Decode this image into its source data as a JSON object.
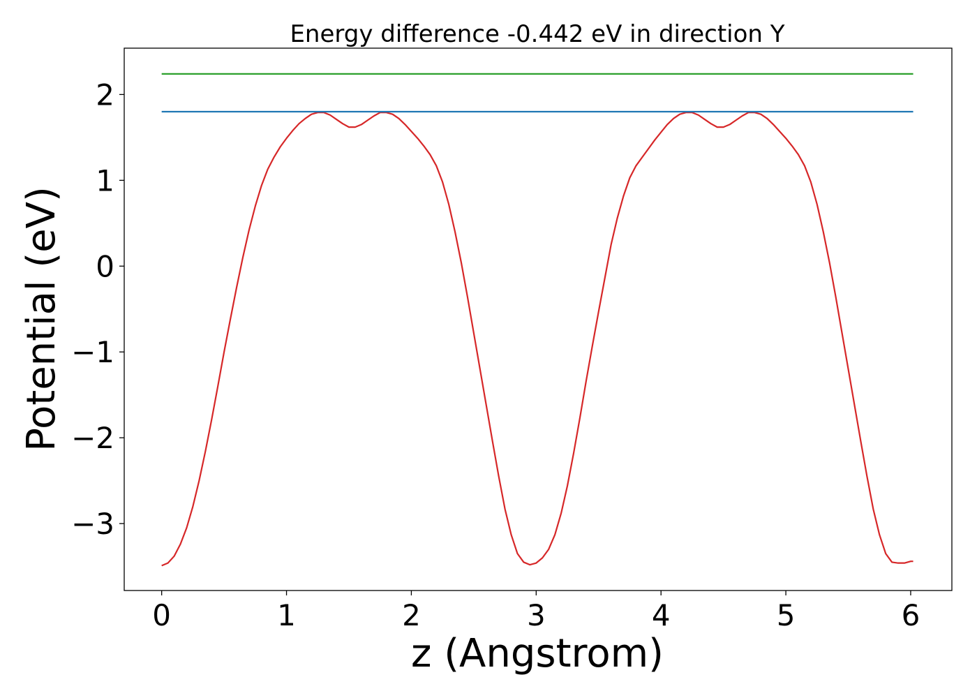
{
  "chart_data": {
    "type": "line",
    "title": "Energy difference -0.442 eV in direction Y",
    "xlabel": "z (Angstrom)",
    "ylabel": "Potential (eV)",
    "xlim": [
      -0.3,
      6.33
    ],
    "ylim": [
      -3.78,
      2.54
    ],
    "xticks": [
      0,
      1,
      2,
      3,
      4,
      5,
      6
    ],
    "xtick_labels": [
      "0",
      "1",
      "2",
      "3",
      "4",
      "5",
      "6"
    ],
    "yticks": [
      -3,
      -2,
      -1,
      0,
      1,
      2
    ],
    "ytick_labels": [
      "−3",
      "−2",
      "−1",
      "0",
      "1",
      "2"
    ],
    "grid": false,
    "series": [
      {
        "color": "#d62728",
        "x": [
          0.0,
          0.05,
          0.1,
          0.15,
          0.2,
          0.25,
          0.3,
          0.35,
          0.4,
          0.45,
          0.5,
          0.55,
          0.6,
          0.65,
          0.7,
          0.75,
          0.8,
          0.85,
          0.9,
          0.95,
          1.0,
          1.05,
          1.1,
          1.15,
          1.2,
          1.25,
          1.3,
          1.35,
          1.4,
          1.45,
          1.5,
          1.55,
          1.6,
          1.65,
          1.7,
          1.75,
          1.8,
          1.85,
          1.9,
          1.95,
          2.0,
          2.05,
          2.1,
          2.15,
          2.2,
          2.25,
          2.3,
          2.35,
          2.4,
          2.45,
          2.5,
          2.55,
          2.6,
          2.65,
          2.7,
          2.75,
          2.8,
          2.85,
          2.9,
          2.95,
          3.0,
          3.05,
          3.1,
          3.15,
          3.2,
          3.25,
          3.3,
          3.35,
          3.4,
          3.45,
          3.5,
          3.55,
          3.6,
          3.65,
          3.7,
          3.75,
          3.8,
          3.85,
          3.9,
          3.95,
          4.0,
          4.05,
          4.1,
          4.15,
          4.2,
          4.25,
          4.3,
          4.35,
          4.4,
          4.45,
          4.5,
          4.55,
          4.6,
          4.65,
          4.7,
          4.75,
          4.8,
          4.85,
          4.9,
          4.95,
          5.0,
          5.05,
          5.1,
          5.15,
          5.2,
          5.25,
          5.3,
          5.35,
          5.4,
          5.45,
          5.5,
          5.55,
          5.6,
          5.65,
          5.7,
          5.75,
          5.8,
          5.85,
          5.9,
          5.95,
          6.0,
          6.02
        ],
        "y": [
          -3.49,
          -3.46,
          -3.38,
          -3.24,
          -3.05,
          -2.8,
          -2.5,
          -2.16,
          -1.79,
          -1.4,
          -1.0,
          -0.62,
          -0.25,
          0.1,
          0.42,
          0.7,
          0.94,
          1.13,
          1.27,
          1.39,
          1.49,
          1.58,
          1.66,
          1.72,
          1.77,
          1.79,
          1.79,
          1.76,
          1.71,
          1.66,
          1.62,
          1.62,
          1.65,
          1.7,
          1.75,
          1.79,
          1.79,
          1.77,
          1.72,
          1.65,
          1.57,
          1.49,
          1.4,
          1.3,
          1.17,
          0.98,
          0.72,
          0.4,
          0.04,
          -0.36,
          -0.78,
          -1.2,
          -1.62,
          -2.04,
          -2.45,
          -2.83,
          -3.13,
          -3.35,
          -3.45,
          -3.48,
          -3.46,
          -3.4,
          -3.3,
          -3.13,
          -2.88,
          -2.56,
          -2.18,
          -1.77,
          -1.34,
          -0.93,
          -0.53,
          -0.14,
          0.25,
          0.56,
          0.82,
          1.03,
          1.17,
          1.27,
          1.37,
          1.47,
          1.56,
          1.65,
          1.72,
          1.77,
          1.79,
          1.79,
          1.76,
          1.71,
          1.66,
          1.62,
          1.62,
          1.65,
          1.7,
          1.75,
          1.79,
          1.79,
          1.77,
          1.72,
          1.65,
          1.57,
          1.49,
          1.4,
          1.3,
          1.17,
          0.98,
          0.72,
          0.4,
          0.04,
          -0.36,
          -0.78,
          -1.2,
          -1.62,
          -2.04,
          -2.45,
          -2.83,
          -3.13,
          -3.35,
          -3.45,
          -3.46,
          -3.46,
          -3.44,
          -3.44
        ]
      },
      {
        "color": "#1f77b4",
        "x": [
          0.0,
          6.02
        ],
        "y": [
          1.8,
          1.8
        ]
      },
      {
        "color": "#2ca02c",
        "x": [
          0.0,
          6.02
        ],
        "y": [
          2.24,
          2.24
        ]
      }
    ]
  }
}
